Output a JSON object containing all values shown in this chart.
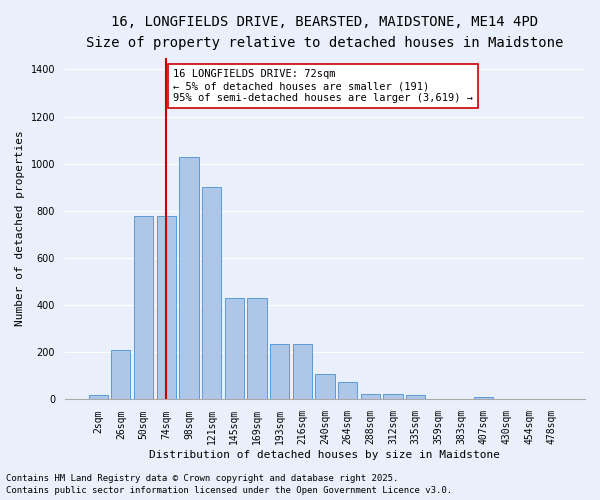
{
  "title_line1": "16, LONGFIELDS DRIVE, BEARSTED, MAIDSTONE, ME14 4PD",
  "title_line2": "Size of property relative to detached houses in Maidstone",
  "xlabel": "Distribution of detached houses by size in Maidstone",
  "ylabel": "Number of detached properties",
  "categories": [
    "2sqm",
    "26sqm",
    "50sqm",
    "74sqm",
    "98sqm",
    "121sqm",
    "145sqm",
    "169sqm",
    "193sqm",
    "216sqm",
    "240sqm",
    "264sqm",
    "288sqm",
    "312sqm",
    "335sqm",
    "359sqm",
    "383sqm",
    "407sqm",
    "430sqm",
    "454sqm",
    "478sqm"
  ],
  "values": [
    20,
    210,
    780,
    780,
    1030,
    900,
    430,
    430,
    235,
    235,
    110,
    75,
    25,
    25,
    20,
    0,
    0,
    10,
    0,
    0,
    0
  ],
  "bar_color": "#aec6e8",
  "bar_edge_color": "#5b9bd5",
  "vline_x": 3,
  "vline_color": "#cc0000",
  "annotation_text": "16 LONGFIELDS DRIVE: 72sqm\n← 5% of detached houses are smaller (191)\n95% of semi-detached houses are larger (3,619) →",
  "annotation_box_color": "#ffffff",
  "annotation_box_edge_color": "#cc0000",
  "ylim": [
    0,
    1450
  ],
  "yticks": [
    0,
    200,
    400,
    600,
    800,
    1000,
    1200,
    1400
  ],
  "background_color": "#eaf0fb",
  "grid_color": "#ffffff",
  "footer_line1": "Contains HM Land Registry data © Crown copyright and database right 2025.",
  "footer_line2": "Contains public sector information licensed under the Open Government Licence v3.0.",
  "title_fontsize": 10,
  "subtitle_fontsize": 9,
  "axis_label_fontsize": 8,
  "tick_fontsize": 7,
  "annotation_fontsize": 7.5,
  "footer_fontsize": 6.5
}
